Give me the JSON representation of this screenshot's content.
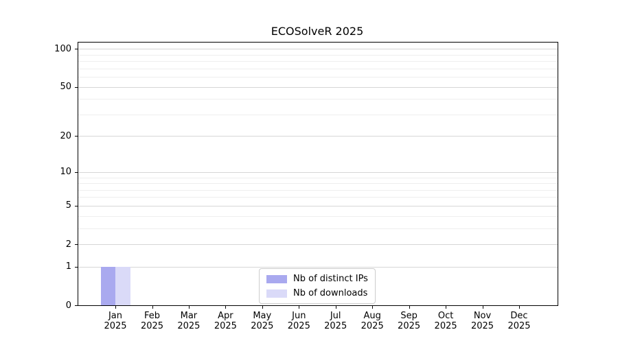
{
  "chart_data": {
    "type": "bar",
    "title": "ECOSolveR 2025",
    "year_label": "2025",
    "categories": [
      "Jan",
      "Feb",
      "Mar",
      "Apr",
      "May",
      "Jun",
      "Jul",
      "Aug",
      "Sep",
      "Oct",
      "Nov",
      "Dec"
    ],
    "x_tick_labels": [
      "Jan 2025",
      "Feb 2025",
      "Mar 2025",
      "Apr 2025",
      "May 2025",
      "Jun 2025",
      "Jul 2025",
      "Aug 2025",
      "Sep 2025",
      "Oct 2025",
      "Nov 2025",
      "Dec 2025"
    ],
    "series": [
      {
        "name": "Nb of distinct IPs",
        "key": "distinct-ips",
        "color": "#a9a9ef",
        "values": [
          1,
          0,
          0,
          0,
          0,
          0,
          0,
          0,
          0,
          0,
          0,
          0
        ]
      },
      {
        "name": "Nb of downloads",
        "key": "downloads",
        "color": "#dadaf8",
        "values": [
          1,
          0,
          0,
          0,
          0,
          0,
          0,
          0,
          0,
          0,
          0,
          0
        ]
      }
    ],
    "xlabel": "",
    "ylabel": "",
    "yscale": "log1p",
    "ylim": [
      0,
      112
    ],
    "yticks": [
      0,
      1,
      2,
      5,
      10,
      20,
      50,
      100
    ],
    "yticks_minor": [
      3,
      4,
      6,
      7,
      8,
      9,
      30,
      40,
      60,
      70,
      80,
      90
    ],
    "grid": "horizontal, major and minor, light gray",
    "legend_position": "lower center"
  },
  "colors": {
    "background": "#ffffff",
    "frame": "#000000",
    "grid_major": "#d6d6d6",
    "grid_minor": "#eeeeee",
    "bar_distinct_ips": "#a9a9ef",
    "bar_downloads": "#dadaf8",
    "text": "#000000"
  }
}
